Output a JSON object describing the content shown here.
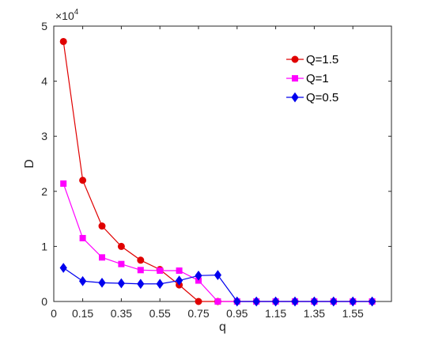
{
  "chart_data": {
    "type": "line",
    "title": "",
    "xlabel": "q",
    "ylabel": "D",
    "y_multiplier_label": "×10",
    "y_multiplier_exponent": "4",
    "xlim": [
      0,
      1.75
    ],
    "ylim": [
      0,
      5
    ],
    "grid": false,
    "legend_position": "top-right",
    "x_ticks": [
      0,
      0.15,
      0.35,
      0.55,
      0.75,
      0.95,
      1.15,
      1.35,
      1.55
    ],
    "x_tick_labels": [
      "0",
      "0.15",
      "0.35",
      "0.55",
      "0.75",
      "0.95",
      "1.15",
      "1.35",
      "1.55"
    ],
    "y_ticks": [
      0,
      1,
      2,
      3,
      4,
      5
    ],
    "y_tick_labels": [
      "0",
      "1",
      "2",
      "3",
      "4",
      "5"
    ],
    "x": [
      0.05,
      0.15,
      0.25,
      0.35,
      0.45,
      0.55,
      0.65,
      0.75,
      0.85,
      0.95,
      1.05,
      1.15,
      1.25,
      1.35,
      1.45,
      1.55,
      1.65
    ],
    "series": [
      {
        "name": "Q=1.5",
        "color": "#e00000",
        "marker": "circle",
        "values": [
          4.72,
          2.2,
          1.37,
          1.0,
          0.75,
          0.58,
          0.3,
          0,
          0,
          0,
          0,
          0,
          0,
          0,
          0,
          0,
          0
        ]
      },
      {
        "name": "Q=1",
        "color": "#ff00ff",
        "marker": "square",
        "values": [
          2.14,
          1.15,
          0.8,
          0.68,
          0.57,
          0.56,
          0.56,
          0.38,
          0,
          0,
          0,
          0,
          0,
          0,
          0,
          0,
          0
        ]
      },
      {
        "name": "Q=0.5",
        "color": "#0000ee",
        "marker": "diamond",
        "values": [
          0.61,
          0.37,
          0.34,
          0.33,
          0.32,
          0.32,
          0.38,
          0.47,
          0.48,
          0,
          0,
          0,
          0,
          0,
          0,
          0,
          0
        ]
      }
    ]
  }
}
